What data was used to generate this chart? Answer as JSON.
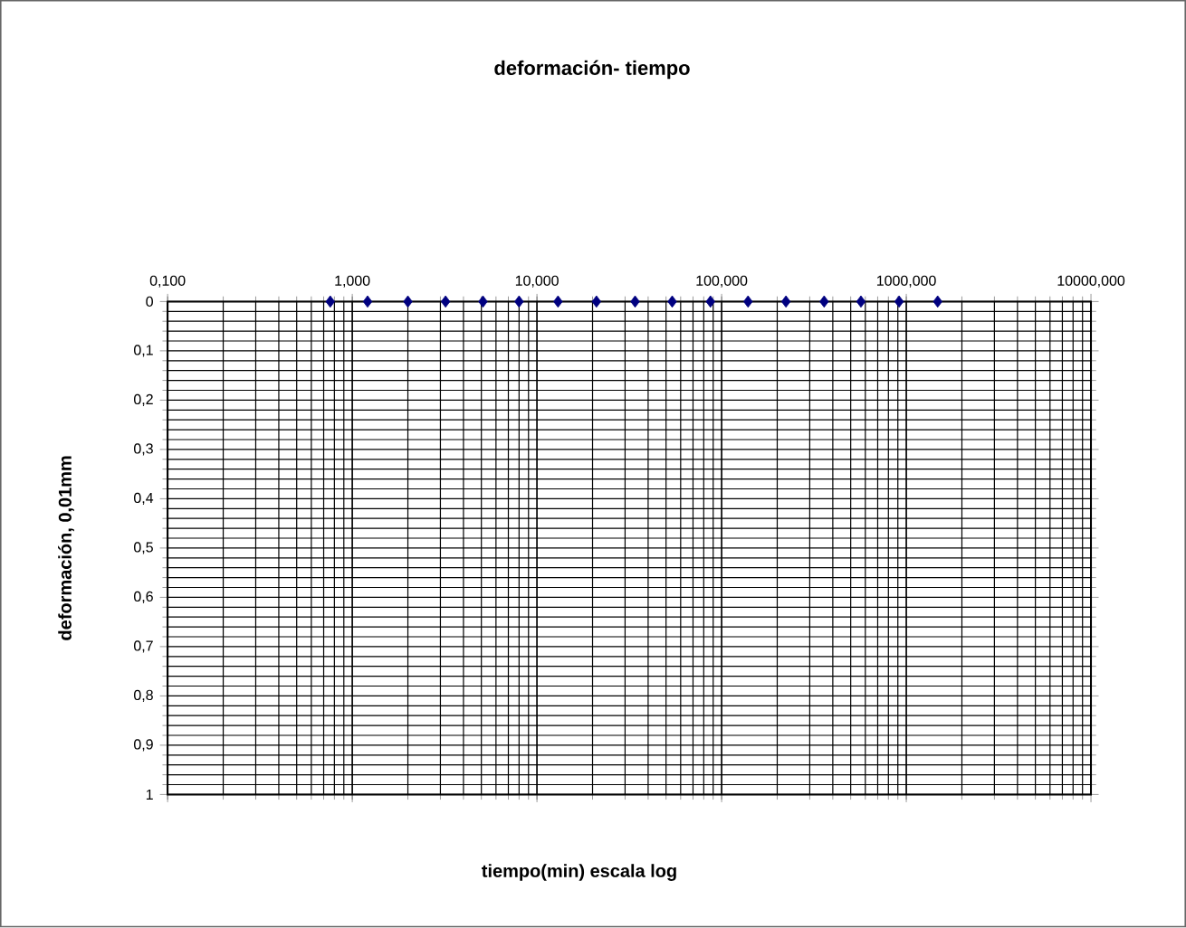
{
  "chart_data": {
    "type": "scatter",
    "title": "deformación- tiempo",
    "xlabel": "tiempo(min) escala log",
    "ylabel": "deformación, 0,01mm",
    "log": "x",
    "grid": true,
    "marker": "diamond",
    "xlim": [
      0.1,
      10000
    ],
    "ylim": [
      1,
      0
    ],
    "xticks": [
      {
        "value": 0.1,
        "label": "0,100"
      },
      {
        "value": 1,
        "label": "1,000"
      },
      {
        "value": 10,
        "label": "10,000"
      },
      {
        "value": 100,
        "label": "100,000"
      },
      {
        "value": 1000,
        "label": "1000,000"
      },
      {
        "value": 10000,
        "label": "10000,000"
      }
    ],
    "yticks": [
      0,
      {
        "value": 0.1,
        "label": "0,1"
      },
      {
        "value": 0.2,
        "label": "0,2"
      },
      {
        "value": 0.3,
        "label": "0,3"
      },
      {
        "value": 0.4,
        "label": "0,4"
      },
      {
        "value": 0.5,
        "label": "0,5"
      },
      {
        "value": 0.6,
        "label": "0,6"
      },
      {
        "value": 0.7,
        "label": "0,7"
      },
      {
        "value": 0.8,
        "label": "0,8"
      },
      {
        "value": 0.9,
        "label": "0,9"
      },
      1
    ],
    "series": [
      {
        "color": "#000080",
        "x": [
          0.76,
          1.21,
          2.0,
          3.2,
          5.1,
          8.0,
          13,
          21,
          34,
          54,
          87,
          139,
          223,
          359,
          568,
          914,
          1479
        ],
        "values": [
          0,
          0,
          0,
          0,
          0,
          0,
          0,
          0,
          0,
          0,
          0,
          0,
          0,
          0,
          0,
          0,
          0
        ]
      }
    ]
  }
}
